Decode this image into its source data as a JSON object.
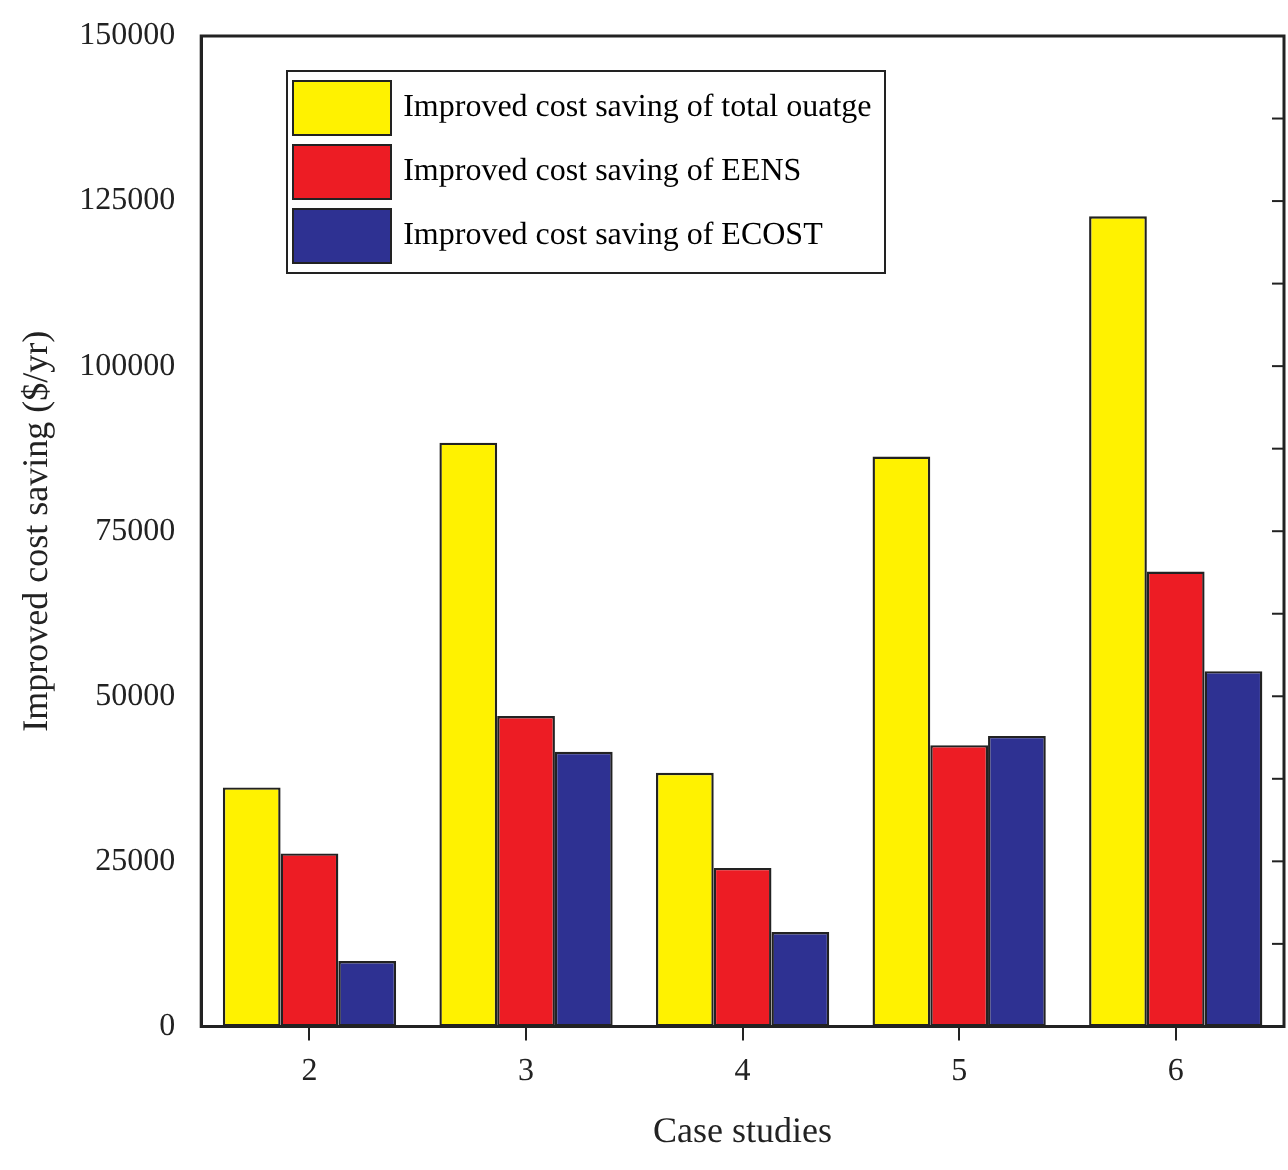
{
  "chart_data": {
    "type": "bar",
    "xlabel": "Case studies",
    "ylabel": "Improved cost saving ($/yr)",
    "categories": [
      "2",
      "3",
      "4",
      "5",
      "6"
    ],
    "series": [
      {
        "name": "Improved cost saving of total ouatge",
        "color": "#fff200",
        "values": [
          36200,
          88400,
          38400,
          86300,
          122700
        ]
      },
      {
        "name": "Improved cost saving of EENS",
        "color": "#ed1c24",
        "values": [
          26200,
          47000,
          24000,
          42600,
          68900
        ]
      },
      {
        "name": "Improved cost saving of ECOST",
        "color": "#2e3192",
        "values": [
          9900,
          41600,
          14300,
          44000,
          53800
        ]
      }
    ],
    "ylim": [
      0,
      150000
    ],
    "yticks": [
      0,
      {
        "value": 12500,
        "label": null
      },
      25000,
      {
        "value": 37500,
        "label": null
      },
      50000,
      {
        "value": 62500,
        "label": null
      },
      75000,
      {
        "value": 87500,
        "label": null
      },
      100000,
      {
        "value": 112500,
        "label": null
      },
      125000,
      {
        "value": 137500,
        "label": null
      },
      150000
    ],
    "grid": false,
    "legend": "top left"
  }
}
